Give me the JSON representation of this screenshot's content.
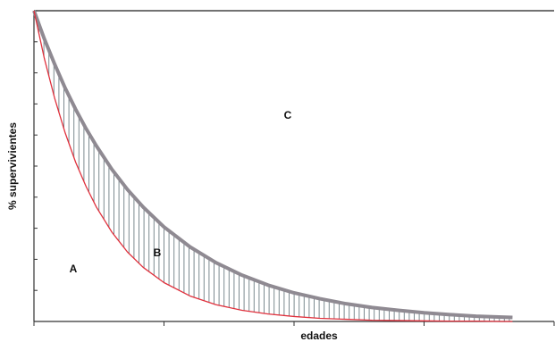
{
  "chart_data": {
    "type": "line",
    "ylabel": "% supervivientes",
    "xlabel": "edades",
    "annotations": [
      "A",
      "B",
      "C"
    ],
    "x": [
      0,
      2,
      4,
      6,
      8,
      10,
      12,
      15,
      18,
      21,
      25,
      30,
      35,
      40,
      45,
      50,
      55,
      60,
      65,
      70,
      75,
      80,
      85,
      90,
      92
    ],
    "series": [
      {
        "color": "#8f8a92",
        "values": [
          100,
          90.9,
          82.7,
          75.1,
          68.3,
          62.1,
          56.5,
          48.9,
          42.4,
          36.8,
          30.4,
          24.0,
          18.9,
          14.9,
          11.7,
          9.2,
          7.3,
          5.7,
          4.5,
          3.6,
          2.8,
          2.2,
          1.7,
          1.4,
          1.3
        ]
      },
      {
        "color": "#e0303c",
        "values": [
          100,
          84.6,
          71.7,
          60.7,
          51.3,
          43.5,
          36.8,
          28.7,
          22.3,
          17.4,
          12.5,
          8.2,
          5.4,
          3.6,
          2.4,
          1.6,
          1.0,
          0.7,
          0.4,
          0.3,
          0.2,
          0.1,
          0.1,
          0.0,
          0.0
        ]
      }
    ],
    "xlim": [
      0,
      100
    ],
    "ylim": [
      0,
      100
    ],
    "xticks": [
      0,
      25,
      50,
      75,
      100
    ],
    "yticks": [
      0,
      10,
      20,
      30,
      40,
      50,
      60,
      70,
      80,
      90,
      100
    ]
  }
}
